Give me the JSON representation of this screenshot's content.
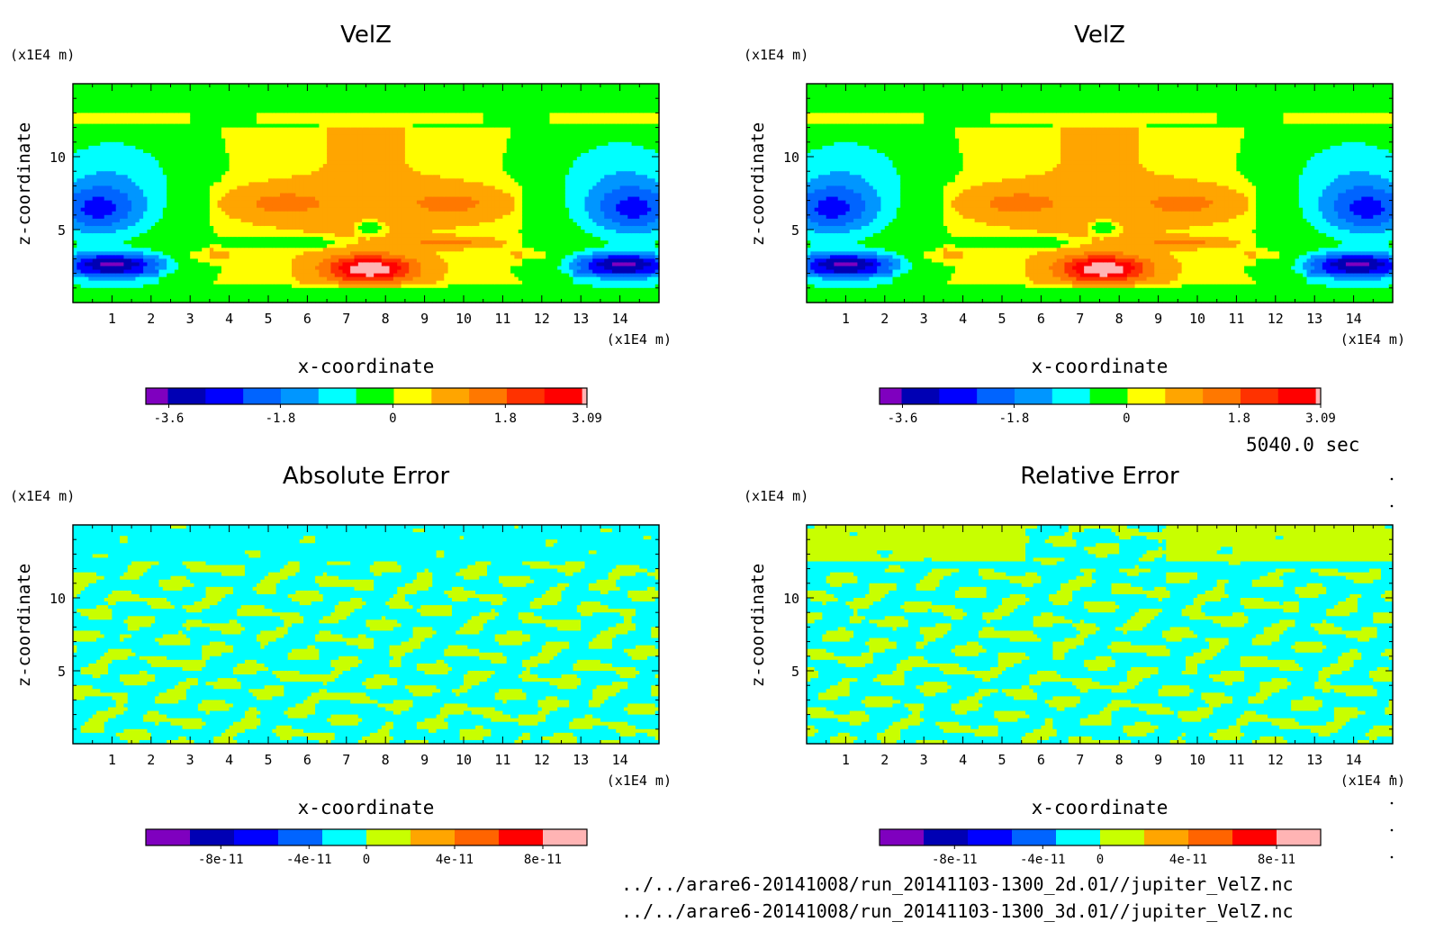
{
  "time_label": "5040.0 sec",
  "files": [
    "../../arare6-20141008/run_20141103-1300_2d.01//jupiter_VelZ.nc",
    "../../arare6-20141008/run_20141103-1300_3d.01//jupiter_VelZ.nc"
  ],
  "chart_data": [
    {
      "type": "heatmap",
      "title": "VelZ",
      "xlabel": "x-coordinate",
      "ylabel": "z-coordinate",
      "x_unit": "(x1E4 m)",
      "y_unit": "(x1E4 m)",
      "xlim": [
        0,
        15
      ],
      "ylim": [
        0,
        15
      ],
      "x_ticks": [
        "1",
        "2",
        "3",
        "4",
        "5",
        "6",
        "7",
        "8",
        "9",
        "10",
        "11",
        "12",
        "13",
        "14"
      ],
      "y_ticks": [
        "5",
        "10"
      ],
      "field": "velz",
      "colorbar": {
        "colors": [
          "#7f00bf",
          "#0000b4",
          "#0000ff",
          "#0064ff",
          "#0096ff",
          "#00ffff",
          "#00ff00",
          "#ffff00",
          "#ffa500",
          "#ff7800",
          "#ff3200",
          "#ff0000",
          "#ffb4b4"
        ],
        "tick_labels": [
          "-3.6",
          "-1.8",
          "0",
          "1.8",
          "3.09"
        ],
        "max": 3.09
      }
    },
    {
      "type": "heatmap",
      "title": "VelZ",
      "xlabel": "x-coordinate",
      "ylabel": "z-coordinate",
      "x_unit": "(x1E4 m)",
      "y_unit": "(x1E4 m)",
      "xlim": [
        0,
        15
      ],
      "ylim": [
        0,
        15
      ],
      "x_ticks": [
        "1",
        "2",
        "3",
        "4",
        "5",
        "6",
        "7",
        "8",
        "9",
        "10",
        "11",
        "12",
        "13",
        "14"
      ],
      "y_ticks": [
        "5",
        "10"
      ],
      "field": "velz",
      "colorbar": {
        "colors": [
          "#7f00bf",
          "#0000b4",
          "#0000ff",
          "#0064ff",
          "#0096ff",
          "#00ffff",
          "#00ff00",
          "#ffff00",
          "#ffa500",
          "#ff7800",
          "#ff3200",
          "#ff0000",
          "#ffb4b4"
        ],
        "tick_labels": [
          "-3.6",
          "-1.8",
          "0",
          "1.8",
          "3.09"
        ],
        "max": 3.09
      }
    },
    {
      "type": "heatmap",
      "title": "Absolute Error",
      "xlabel": "x-coordinate",
      "ylabel": "z-coordinate",
      "x_unit": "(x1E4 m)",
      "y_unit": "(x1E4 m)",
      "xlim": [
        0,
        15
      ],
      "ylim": [
        0,
        15
      ],
      "x_ticks": [
        "1",
        "2",
        "3",
        "4",
        "5",
        "6",
        "7",
        "8",
        "9",
        "10",
        "11",
        "12",
        "13",
        "14"
      ],
      "y_ticks": [
        "5",
        "10"
      ],
      "field": "abs_error",
      "colorbar": {
        "colors": [
          "#7f00bf",
          "#0000b4",
          "#0000ff",
          "#0064ff",
          "#00ffff",
          "#c8ff00",
          "#ffa500",
          "#ff6400",
          "#ff0000",
          "#ffb4b4"
        ],
        "tick_labels": [
          "-8e-11",
          "-4e-11",
          "0",
          "4e-11",
          "8e-11"
        ]
      }
    },
    {
      "type": "heatmap",
      "title": "Relative Error",
      "xlabel": "x-coordinate",
      "ylabel": "z-coordinate",
      "x_unit": "(x1E4 m)",
      "y_unit": "(x1E4 m)",
      "xlim": [
        0,
        15
      ],
      "ylim": [
        0,
        15
      ],
      "x_ticks": [
        "1",
        "2",
        "3",
        "4",
        "5",
        "6",
        "7",
        "8",
        "9",
        "10",
        "11",
        "12",
        "13",
        "14"
      ],
      "y_ticks": [
        "5",
        "10"
      ],
      "field": "rel_error",
      "colorbar": {
        "colors": [
          "#7f00bf",
          "#0000b4",
          "#0000ff",
          "#0064ff",
          "#00ffff",
          "#c8ff00",
          "#ffa500",
          "#ff6400",
          "#ff0000",
          "#ffb4b4"
        ],
        "tick_labels": [
          "-8e-11",
          "-4e-11",
          "0",
          "4e-11",
          "8e-11"
        ]
      }
    }
  ]
}
